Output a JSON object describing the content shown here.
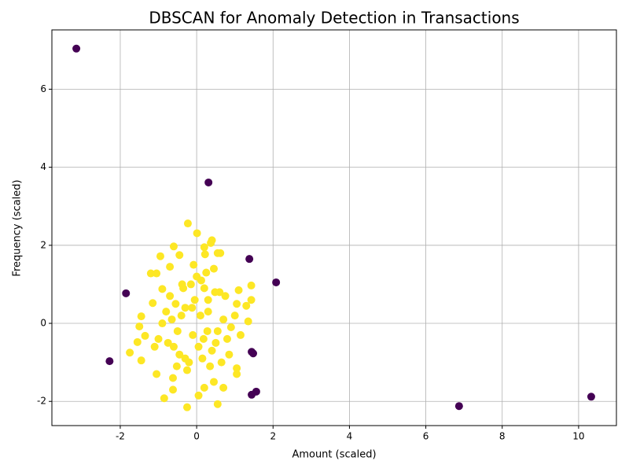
{
  "chart_data": {
    "type": "scatter",
    "title": "DBSCAN for Anomaly Detection in Transactions",
    "x_label": "Amount (scaled)",
    "y_label": "Frequency (scaled)",
    "xlim": [
      -3.79,
      10.99
    ],
    "ylim": [
      -2.62,
      7.52
    ],
    "xticks": [
      -2,
      0,
      2,
      4,
      6,
      8,
      10
    ],
    "yticks": [
      -2,
      0,
      2,
      4,
      6
    ],
    "grid": true,
    "series": [
      {
        "color": "#440154",
        "x": [
          -3.15,
          0.31,
          1.38,
          2.08,
          -1.85,
          -2.28,
          1.44,
          1.48,
          1.44,
          1.56,
          6.87,
          10.33
        ],
        "y": [
          7.04,
          3.61,
          1.65,
          1.05,
          0.77,
          -0.97,
          -0.73,
          -0.77,
          -1.83,
          -1.75,
          -2.12,
          -1.88
        ]
      },
      {
        "color": "#fde725",
        "x": [
          -0.23,
          0.01,
          0.4,
          0.37,
          0.2,
          -0.6,
          0.55,
          0.62,
          0.22,
          -0.45,
          -0.95,
          -1.2,
          -1.05,
          -0.7,
          1.43,
          1.43,
          1.3,
          1.35,
          1.1,
          -1.5,
          -1.55,
          -1.75,
          -1.45,
          -0.85,
          -0.25,
          0.55,
          0.05,
          0.2,
          0.45,
          0.7,
          1.05,
          1.05,
          -1.05,
          -0.62,
          -0.62,
          -1.45,
          -1.35,
          -1.15,
          -0.9,
          1.05,
          0.1,
          -0.1,
          0.3,
          -0.3,
          0.5,
          -0.5,
          0.7,
          -0.7,
          0.15,
          -0.15,
          0.35,
          -0.35,
          0.6,
          -0.6,
          0.8,
          -0.8,
          0.0,
          0.25,
          -0.25,
          0.45,
          -0.45,
          0.9,
          -0.9,
          0.05,
          -0.05,
          0.3,
          -0.3,
          0.55,
          -0.55,
          0.75,
          -0.75,
          0.2,
          -0.2,
          0.4,
          -0.4,
          0.65,
          -0.65,
          0.12,
          -0.12,
          0.85,
          -1.0,
          1.0,
          -1.1,
          1.15,
          0.28,
          -0.38,
          0.48,
          -0.52,
          0.18,
          -0.08
        ],
        "y": [
          2.56,
          2.31,
          2.13,
          2.06,
          1.95,
          1.97,
          1.8,
          1.8,
          1.77,
          1.75,
          1.72,
          1.28,
          1.28,
          1.45,
          0.97,
          0.6,
          0.45,
          0.05,
          0.85,
          -0.08,
          -0.48,
          -0.75,
          -0.95,
          -1.92,
          -2.15,
          -2.07,
          -1.85,
          -1.65,
          -1.5,
          -1.65,
          -1.3,
          -1.15,
          -1.3,
          -1.7,
          -1.4,
          0.18,
          -0.32,
          0.52,
          0.88,
          0.5,
          0.2,
          -0.3,
          0.6,
          0.4,
          -0.5,
          -0.2,
          0.1,
          0.7,
          -0.9,
          1.0,
          -1.1,
          0.9,
          0.8,
          -0.6,
          -0.4,
          0.3,
          1.2,
          1.3,
          -1.2,
          1.4,
          -0.8,
          -0.1,
          0.0,
          -0.6,
          0.6,
          0.3,
          -0.9,
          -0.2,
          0.5,
          0.7,
          -0.5,
          0.9,
          -1.0,
          -0.7,
          0.2,
          -1.0,
          0.1,
          1.1,
          0.4,
          -0.8,
          -0.4,
          0.2,
          -0.6,
          -0.3,
          -0.2,
          1.0,
          0.8,
          -1.1,
          -0.4,
          1.5
        ]
      }
    ]
  }
}
